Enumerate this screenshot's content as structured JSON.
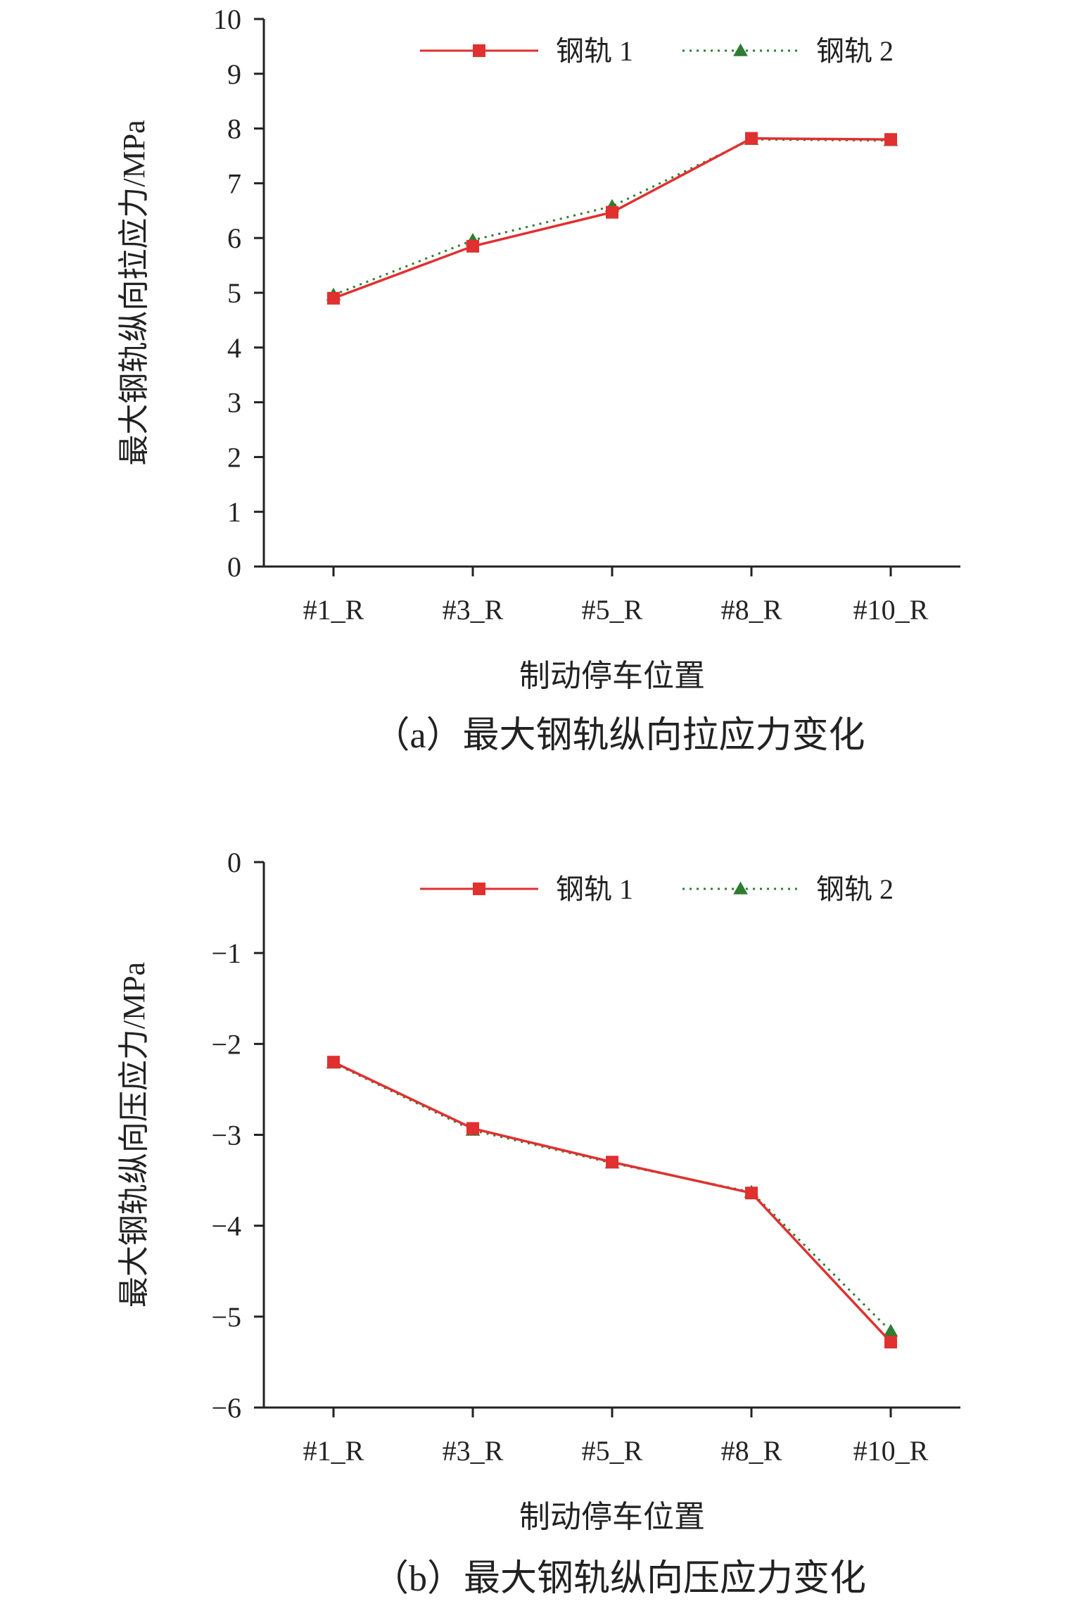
{
  "chart_data": [
    {
      "type": "line",
      "categories": [
        "#1_R",
        "#3_R",
        "#5_R",
        "#8_R",
        "#10_R"
      ],
      "series": [
        {
          "name": "钢轨 1",
          "values": [
            4.9,
            5.85,
            6.47,
            7.82,
            7.8
          ],
          "color": "#e03030",
          "line_style": "solid",
          "marker": "square"
        },
        {
          "name": "钢轨 2",
          "values": [
            4.96,
            5.96,
            6.58,
            7.8,
            7.78
          ],
          "color": "#2e7d32",
          "line_style": "dotted",
          "marker": "triangle"
        }
      ],
      "xlabel": "制动停车位置",
      "ylabel": "最大钢轨纵向拉应力/MPa",
      "ylim": [
        0,
        10
      ],
      "yticks": [
        "0",
        "1",
        "2",
        "3",
        "4",
        "5",
        "6",
        "7",
        "8",
        "9",
        "10"
      ],
      "grid": false,
      "legend": "top-right",
      "caption": "（a）最大钢轨纵向拉应力变化"
    },
    {
      "type": "line",
      "categories": [
        "#1_R",
        "#3_R",
        "#5_R",
        "#8_R",
        "#10_R"
      ],
      "series": [
        {
          "name": "钢轨 1",
          "values": [
            -2.2,
            -2.93,
            -3.3,
            -3.64,
            -5.28
          ],
          "color": "#e03030",
          "line_style": "solid",
          "marker": "square"
        },
        {
          "name": "钢轨 2",
          "values": [
            -2.21,
            -2.95,
            -3.31,
            -3.63,
            -5.16
          ],
          "color": "#2e7d32",
          "line_style": "dotted",
          "marker": "triangle"
        }
      ],
      "xlabel": "制动停车位置",
      "ylabel": "最大钢轨纵向压应力/MPa",
      "ylim": [
        -6,
        0
      ],
      "yticks": [
        "0",
        "−1",
        "−2",
        "−3",
        "−4",
        "−5",
        "−6"
      ],
      "grid": false,
      "legend": "top-right",
      "caption": "（b）最大钢轨纵向压应力变化"
    }
  ]
}
